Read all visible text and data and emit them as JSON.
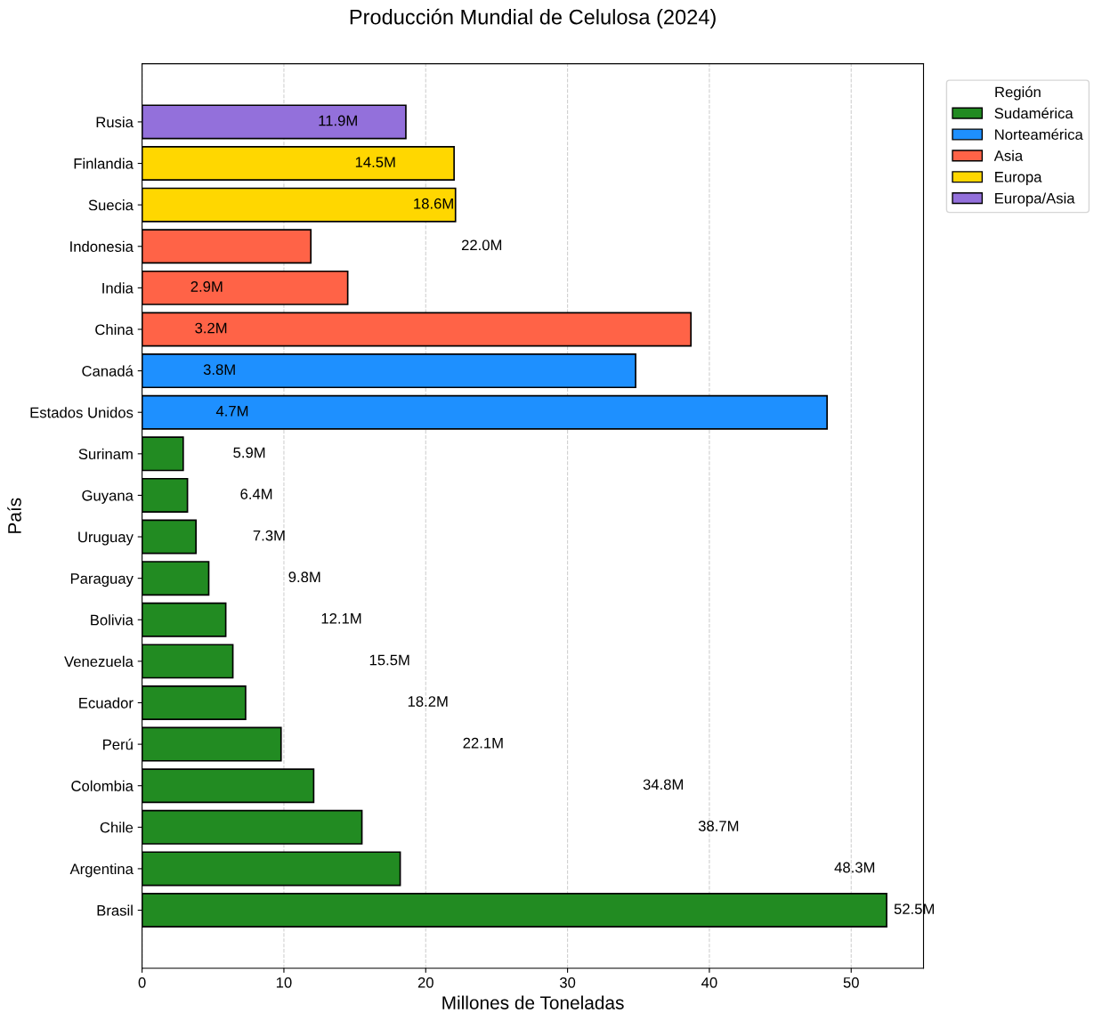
{
  "chart_data": {
    "type": "bar",
    "orientation": "horizontal",
    "title": "Producción Mundial de Celulosa (2024)",
    "xlabel": "Millones de Toneladas",
    "ylabel": "País",
    "legend_title": "Región",
    "categories": [
      "Rusia",
      "Finlandia",
      "Suecia",
      "Indonesia",
      "India",
      "China",
      "Canadá",
      "Estados Unidos",
      "Surinam",
      "Guyana",
      "Uruguay",
      "Paraguay",
      "Bolivia",
      "Venezuela",
      "Ecuador",
      "Perú",
      "Colombia",
      "Chile",
      "Argentina",
      "Brasil"
    ],
    "series": [
      {
        "name": "Sudamérica",
        "color": "#228b22",
        "values": [
          null,
          null,
          null,
          null,
          null,
          null,
          null,
          null,
          2.9,
          3.2,
          3.8,
          4.7,
          5.9,
          6.4,
          7.3,
          9.8,
          12.1,
          15.5,
          18.2,
          52.5
        ]
      },
      {
        "name": "Norteamérica",
        "color": "#1e90ff",
        "values": [
          null,
          null,
          null,
          null,
          null,
          null,
          34.8,
          48.3,
          null,
          null,
          null,
          null,
          null,
          null,
          null,
          null,
          null,
          null,
          null,
          null
        ]
      },
      {
        "name": "Asia",
        "color": "#ff6347",
        "values": [
          null,
          null,
          null,
          11.9,
          14.5,
          38.7,
          null,
          null,
          null,
          null,
          null,
          null,
          null,
          null,
          null,
          null,
          null,
          null,
          null,
          null
        ]
      },
      {
        "name": "Europa",
        "color": "#ffd700",
        "values": [
          null,
          22.0,
          22.1,
          null,
          null,
          null,
          null,
          null,
          null,
          null,
          null,
          null,
          null,
          null,
          null,
          null,
          null,
          null,
          null,
          null
        ]
      },
      {
        "name": "Europa/Asia",
        "color": "#9370db",
        "values": [
          18.6,
          null,
          null,
          null,
          null,
          null,
          null,
          null,
          null,
          null,
          null,
          null,
          null,
          null,
          null,
          null,
          null,
          null,
          null,
          null
        ]
      }
    ],
    "xlim": [
      0,
      55.1
    ],
    "xticks": [
      0,
      10,
      20,
      30,
      40,
      50
    ],
    "grid": "x",
    "legend": "right",
    "annotations": [
      "11.9M",
      "14.5M",
      "18.6M",
      "22.0M",
      "2.9M",
      "3.2M",
      "3.8M",
      "4.7M",
      "5.9M",
      "6.4M",
      "7.3M",
      "9.8M",
      "12.1M",
      "15.5M",
      "18.2M",
      "22.1M",
      "34.8M",
      "38.7M",
      "48.3M",
      "52.5M"
    ]
  }
}
